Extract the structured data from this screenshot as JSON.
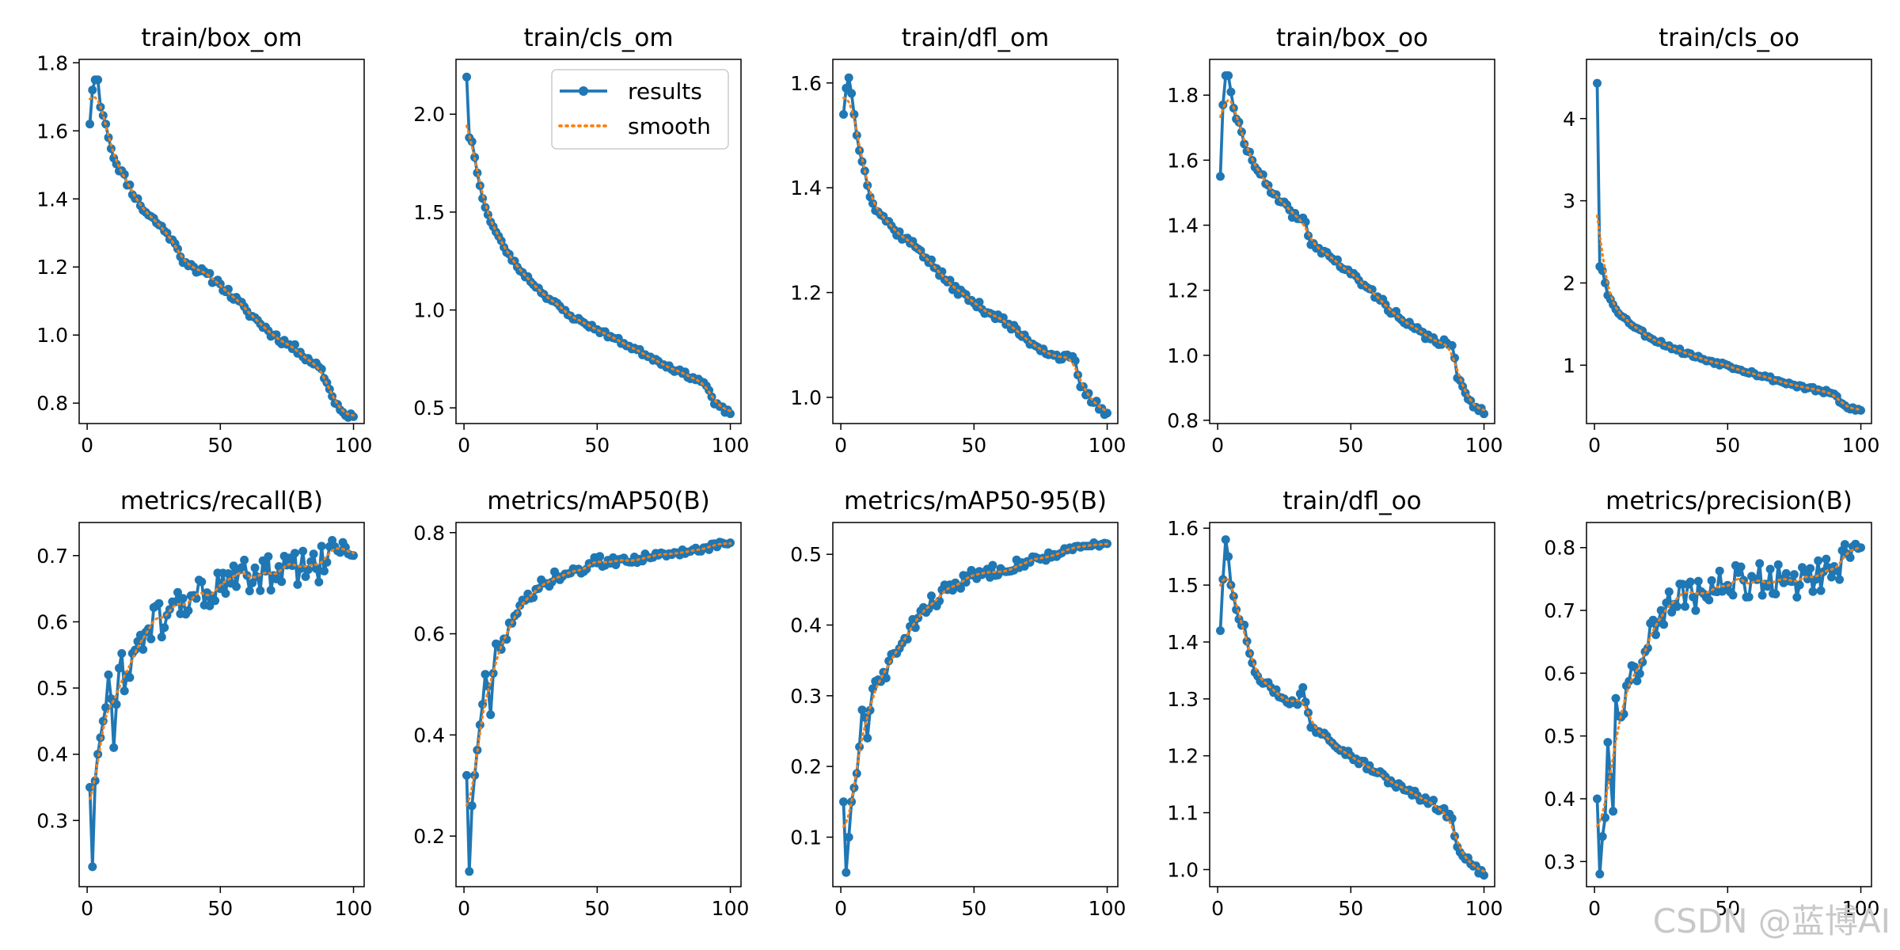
{
  "colors": {
    "results": "#1f77b4",
    "smooth": "#ff7f0e"
  },
  "watermark": "CSDN @蓝博AI",
  "legend": {
    "results": "results",
    "smooth": "smooth",
    "placement": "upper-right of panel 2"
  },
  "chart_data": [
    {
      "type": "line",
      "title": "train/box_om",
      "xlim": [
        -3,
        104
      ],
      "ylim": [
        0.74,
        1.81
      ],
      "xticks": [
        0,
        50,
        100
      ],
      "yticks": [
        0.8,
        1.0,
        1.2,
        1.4,
        1.6,
        1.8
      ],
      "x_range": [
        1,
        100
      ],
      "anchors": [
        [
          1,
          1.62
        ],
        [
          2,
          1.72
        ],
        [
          3,
          1.75
        ],
        [
          4,
          1.75
        ],
        [
          5,
          1.67
        ],
        [
          7,
          1.62
        ],
        [
          10,
          1.52
        ],
        [
          20,
          1.38
        ],
        [
          30,
          1.3
        ],
        [
          32,
          1.28
        ],
        [
          35,
          1.23
        ],
        [
          40,
          1.2
        ],
        [
          50,
          1.15
        ],
        [
          60,
          1.07
        ],
        [
          70,
          1.0
        ],
        [
          80,
          0.95
        ],
        [
          88,
          0.9
        ],
        [
          90,
          0.86
        ],
        [
          92,
          0.82
        ],
        [
          95,
          0.78
        ],
        [
          100,
          0.76
        ]
      ],
      "noise": 0.012,
      "noise_decay": false,
      "seed": 11
    },
    {
      "type": "line",
      "title": "train/cls_om",
      "xlim": [
        -3,
        104
      ],
      "ylim": [
        0.42,
        2.28
      ],
      "xticks": [
        0,
        50,
        100
      ],
      "yticks": [
        0.5,
        1.0,
        1.5,
        2.0
      ],
      "x_range": [
        1,
        100
      ],
      "anchors": [
        [
          1,
          2.19
        ],
        [
          2,
          1.88
        ],
        [
          3,
          1.86
        ],
        [
          5,
          1.7
        ],
        [
          7,
          1.57
        ],
        [
          10,
          1.45
        ],
        [
          15,
          1.32
        ],
        [
          20,
          1.22
        ],
        [
          30,
          1.08
        ],
        [
          40,
          0.97
        ],
        [
          50,
          0.9
        ],
        [
          60,
          0.83
        ],
        [
          70,
          0.76
        ],
        [
          80,
          0.69
        ],
        [
          90,
          0.63
        ],
        [
          92,
          0.59
        ],
        [
          94,
          0.52
        ],
        [
          100,
          0.47
        ]
      ],
      "noise": 0.012,
      "noise_decay": false,
      "seed": 23
    },
    {
      "type": "line",
      "title": "train/dfl_om",
      "xlim": [
        -3,
        104
      ],
      "ylim": [
        0.95,
        1.645
      ],
      "xticks": [
        0,
        50,
        100
      ],
      "yticks": [
        1.0,
        1.2,
        1.4,
        1.6
      ],
      "x_range": [
        1,
        100
      ],
      "anchors": [
        [
          1,
          1.54
        ],
        [
          2,
          1.59
        ],
        [
          3,
          1.61
        ],
        [
          4,
          1.58
        ],
        [
          6,
          1.5
        ],
        [
          8,
          1.45
        ],
        [
          12,
          1.37
        ],
        [
          20,
          1.32
        ],
        [
          30,
          1.28
        ],
        [
          40,
          1.22
        ],
        [
          50,
          1.18
        ],
        [
          60,
          1.15
        ],
        [
          70,
          1.11
        ],
        [
          80,
          1.08
        ],
        [
          88,
          1.07
        ],
        [
          90,
          1.02
        ],
        [
          95,
          0.99
        ],
        [
          100,
          0.97
        ]
      ],
      "noise": 0.008,
      "noise_decay": false,
      "seed": 37
    },
    {
      "type": "line",
      "title": "train/box_oo",
      "xlim": [
        -3,
        104
      ],
      "ylim": [
        0.79,
        1.91
      ],
      "xticks": [
        0,
        50,
        100
      ],
      "yticks": [
        0.8,
        1.0,
        1.2,
        1.4,
        1.6,
        1.8
      ],
      "x_range": [
        1,
        100
      ],
      "anchors": [
        [
          1,
          1.55
        ],
        [
          2,
          1.77
        ],
        [
          3,
          1.86
        ],
        [
          4,
          1.86
        ],
        [
          6,
          1.76
        ],
        [
          10,
          1.65
        ],
        [
          20,
          1.5
        ],
        [
          30,
          1.42
        ],
        [
          33,
          1.41
        ],
        [
          35,
          1.34
        ],
        [
          40,
          1.32
        ],
        [
          50,
          1.25
        ],
        [
          60,
          1.18
        ],
        [
          70,
          1.1
        ],
        [
          80,
          1.05
        ],
        [
          88,
          1.03
        ],
        [
          90,
          0.93
        ],
        [
          95,
          0.86
        ],
        [
          100,
          0.82
        ]
      ],
      "noise": 0.012,
      "noise_decay": false,
      "seed": 41
    },
    {
      "type": "line",
      "title": "train/cls_oo",
      "xlim": [
        -3,
        104
      ],
      "ylim": [
        0.29,
        4.72
      ],
      "xticks": [
        0,
        50,
        100
      ],
      "yticks": [
        1,
        2,
        3,
        4
      ],
      "x_range": [
        1,
        100
      ],
      "anchors": [
        [
          1,
          4.43
        ],
        [
          2,
          2.2
        ],
        [
          3,
          2.15
        ],
        [
          5,
          1.85
        ],
        [
          10,
          1.6
        ],
        [
          20,
          1.35
        ],
        [
          30,
          1.2
        ],
        [
          40,
          1.08
        ],
        [
          50,
          1.0
        ],
        [
          60,
          0.9
        ],
        [
          70,
          0.8
        ],
        [
          80,
          0.72
        ],
        [
          90,
          0.65
        ],
        [
          92,
          0.55
        ],
        [
          95,
          0.48
        ],
        [
          100,
          0.45
        ]
      ],
      "noise": 0.025,
      "noise_decay": false,
      "seed": 53
    },
    {
      "type": "line",
      "title": "metrics/recall(B)",
      "xlim": [
        -3,
        104
      ],
      "ylim": [
        0.2,
        0.75
      ],
      "xticks": [
        0,
        50,
        100
      ],
      "yticks": [
        0.3,
        0.4,
        0.5,
        0.6,
        0.7
      ],
      "x_range": [
        1,
        100
      ],
      "anchors": [
        [
          1,
          0.35
        ],
        [
          2,
          0.23
        ],
        [
          3,
          0.36
        ],
        [
          4,
          0.4
        ],
        [
          6,
          0.45
        ],
        [
          8,
          0.52
        ],
        [
          10,
          0.41
        ],
        [
          12,
          0.53
        ],
        [
          15,
          0.52
        ],
        [
          20,
          0.58
        ],
        [
          30,
          0.61
        ],
        [
          40,
          0.64
        ],
        [
          50,
          0.65
        ],
        [
          60,
          0.67
        ],
        [
          70,
          0.67
        ],
        [
          80,
          0.68
        ],
        [
          90,
          0.69
        ],
        [
          96,
          0.72
        ],
        [
          100,
          0.7
        ]
      ],
      "noise": 0.03,
      "noise_decay": false,
      "seed": 61
    },
    {
      "type": "line",
      "title": "metrics/mAP50(B)",
      "xlim": [
        -3,
        104
      ],
      "ylim": [
        0.1,
        0.82
      ],
      "xticks": [
        0,
        50,
        100
      ],
      "yticks": [
        0.2,
        0.4,
        0.6,
        0.8
      ],
      "x_range": [
        1,
        100
      ],
      "anchors": [
        [
          1,
          0.32
        ],
        [
          2,
          0.13
        ],
        [
          3,
          0.26
        ],
        [
          4,
          0.32
        ],
        [
          6,
          0.42
        ],
        [
          8,
          0.52
        ],
        [
          10,
          0.44
        ],
        [
          12,
          0.58
        ],
        [
          15,
          0.59
        ],
        [
          20,
          0.64
        ],
        [
          25,
          0.67
        ],
        [
          30,
          0.7
        ],
        [
          40,
          0.72
        ],
        [
          50,
          0.74
        ],
        [
          60,
          0.75
        ],
        [
          70,
          0.75
        ],
        [
          80,
          0.76
        ],
        [
          90,
          0.77
        ],
        [
          100,
          0.78
        ]
      ],
      "noise": 0.018,
      "noise_decay": true,
      "seed": 73
    },
    {
      "type": "line",
      "title": "metrics/mAP50-95(B)",
      "xlim": [
        -3,
        104
      ],
      "ylim": [
        0.03,
        0.545
      ],
      "xticks": [
        0,
        50,
        100
      ],
      "yticks": [
        0.1,
        0.2,
        0.3,
        0.4,
        0.5
      ],
      "x_range": [
        1,
        100
      ],
      "anchors": [
        [
          1,
          0.15
        ],
        [
          2,
          0.05
        ],
        [
          3,
          0.1
        ],
        [
          4,
          0.15
        ],
        [
          6,
          0.19
        ],
        [
          8,
          0.28
        ],
        [
          10,
          0.24
        ],
        [
          12,
          0.31
        ],
        [
          15,
          0.32
        ],
        [
          20,
          0.36
        ],
        [
          25,
          0.38
        ],
        [
          30,
          0.42
        ],
        [
          40,
          0.45
        ],
        [
          50,
          0.47
        ],
        [
          60,
          0.48
        ],
        [
          70,
          0.49
        ],
        [
          80,
          0.5
        ],
        [
          90,
          0.51
        ],
        [
          100,
          0.515
        ]
      ],
      "noise": 0.014,
      "noise_decay": true,
      "seed": 83
    },
    {
      "type": "line",
      "title": "train/dfl_oo",
      "xlim": [
        -3,
        104
      ],
      "ylim": [
        0.97,
        1.61
      ],
      "xticks": [
        0,
        50,
        100
      ],
      "yticks": [
        1.0,
        1.1,
        1.2,
        1.3,
        1.4,
        1.5,
        1.6
      ],
      "x_range": [
        1,
        100
      ],
      "anchors": [
        [
          1,
          1.42
        ],
        [
          2,
          1.51
        ],
        [
          3,
          1.58
        ],
        [
          4,
          1.55
        ],
        [
          5,
          1.5
        ],
        [
          8,
          1.44
        ],
        [
          10,
          1.43
        ],
        [
          12,
          1.38
        ],
        [
          15,
          1.34
        ],
        [
          20,
          1.32
        ],
        [
          25,
          1.3
        ],
        [
          30,
          1.29
        ],
        [
          32,
          1.32
        ],
        [
          35,
          1.25
        ],
        [
          40,
          1.24
        ],
        [
          50,
          1.2
        ],
        [
          60,
          1.17
        ],
        [
          70,
          1.14
        ],
        [
          80,
          1.12
        ],
        [
          88,
          1.09
        ],
        [
          90,
          1.04
        ],
        [
          95,
          1.01
        ],
        [
          100,
          0.99
        ]
      ],
      "noise": 0.007,
      "noise_decay": false,
      "seed": 97
    },
    {
      "type": "line",
      "title": "metrics/precision(B)",
      "xlim": [
        -3,
        104
      ],
      "ylim": [
        0.26,
        0.84
      ],
      "xticks": [
        0,
        50,
        100
      ],
      "yticks": [
        0.3,
        0.4,
        0.5,
        0.6,
        0.7,
        0.8
      ],
      "x_range": [
        1,
        100
      ],
      "anchors": [
        [
          1,
          0.4
        ],
        [
          2,
          0.28
        ],
        [
          3,
          0.34
        ],
        [
          4,
          0.37
        ],
        [
          5,
          0.49
        ],
        [
          7,
          0.38
        ],
        [
          8,
          0.56
        ],
        [
          10,
          0.53
        ],
        [
          12,
          0.58
        ],
        [
          15,
          0.61
        ],
        [
          20,
          0.64
        ],
        [
          25,
          0.7
        ],
        [
          30,
          0.71
        ],
        [
          40,
          0.73
        ],
        [
          50,
          0.74
        ],
        [
          60,
          0.75
        ],
        [
          70,
          0.75
        ],
        [
          80,
          0.75
        ],
        [
          90,
          0.77
        ],
        [
          95,
          0.79
        ],
        [
          100,
          0.8
        ]
      ],
      "noise": 0.03,
      "noise_decay": false,
      "seed": 109
    }
  ]
}
